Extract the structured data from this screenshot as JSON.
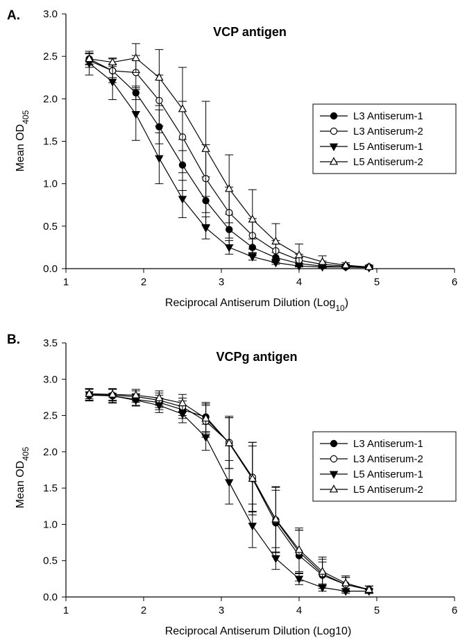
{
  "chart_data": [
    {
      "panel_label": "A.",
      "type": "line",
      "title": "VCP antigen",
      "xlabel": "Reciprocal Antiserum Dilution (Log",
      "xlabel_sub": "10",
      "xlabel_tail": ")",
      "ylabel": "Mean OD",
      "ylabel_sub": "405",
      "xlim": [
        1,
        6
      ],
      "ylim": [
        0,
        3
      ],
      "xticks": [
        "1",
        "2",
        "3",
        "4",
        "5",
        "6"
      ],
      "yticks": [
        "0.0",
        "0.5",
        "1.0",
        "1.5",
        "2.0",
        "2.5",
        "3.0"
      ],
      "legend_position": "right",
      "series": [
        {
          "name": "L3 Antiserum-1",
          "marker": "circle-filled",
          "x": [
            1.3,
            1.6,
            1.9,
            2.2,
            2.5,
            2.8,
            3.1,
            3.4,
            3.7,
            4.0,
            4.3,
            4.6,
            4.9
          ],
          "y": [
            2.47,
            2.33,
            2.07,
            1.67,
            1.22,
            0.8,
            0.46,
            0.25,
            0.13,
            0.06,
            0.03,
            0.02,
            0.02
          ],
          "err": [
            0.06,
            0.08,
            0.08,
            0.2,
            0.3,
            0.28,
            0.18,
            0.1,
            0.06,
            0.03,
            0.02,
            0.01,
            0.01
          ]
        },
        {
          "name": "L3 Antiserum-2",
          "marker": "circle-open",
          "x": [
            1.3,
            1.6,
            1.9,
            2.2,
            2.5,
            2.8,
            3.1,
            3.4,
            3.7,
            4.0,
            4.3,
            4.6,
            4.9
          ],
          "y": [
            2.45,
            2.33,
            2.31,
            1.98,
            1.55,
            1.06,
            0.66,
            0.39,
            0.21,
            0.1,
            0.05,
            0.03,
            0.02
          ],
          "err": [
            0.08,
            0.14,
            0.2,
            0.3,
            0.42,
            0.4,
            0.3,
            0.2,
            0.12,
            0.07,
            0.04,
            0.02,
            0.01
          ]
        },
        {
          "name": "L5 Antiserum-1",
          "marker": "triangle-down-filled",
          "x": [
            1.3,
            1.6,
            1.9,
            2.2,
            2.5,
            2.8,
            3.1,
            3.4,
            3.7,
            4.0,
            4.3,
            4.6,
            4.9
          ],
          "y": [
            2.42,
            2.2,
            1.82,
            1.3,
            0.82,
            0.48,
            0.25,
            0.14,
            0.07,
            0.03,
            0.02,
            0.02,
            0.01
          ],
          "err": [
            0.14,
            0.21,
            0.31,
            0.3,
            0.22,
            0.13,
            0.08,
            0.04,
            0.02,
            0.01,
            0.01,
            0.01,
            0.01
          ]
        },
        {
          "name": "L5 Antiserum-2",
          "marker": "triangle-up-open",
          "x": [
            1.3,
            1.6,
            1.9,
            2.2,
            2.5,
            2.8,
            3.1,
            3.4,
            3.7,
            4.0,
            4.3,
            4.6,
            4.9
          ],
          "y": [
            2.47,
            2.43,
            2.48,
            2.25,
            1.88,
            1.41,
            0.94,
            0.58,
            0.32,
            0.16,
            0.08,
            0.04,
            0.02
          ],
          "err": [
            0.07,
            0.05,
            0.17,
            0.33,
            0.49,
            0.56,
            0.4,
            0.35,
            0.21,
            0.13,
            0.07,
            0.03,
            0.02
          ]
        }
      ]
    },
    {
      "panel_label": "B.",
      "type": "line",
      "title": "VCPg antigen",
      "xlabel": "Reciprocal Antiserum Dilution (Log10)",
      "xlabel_sub": "",
      "xlabel_tail": "",
      "ylabel": "Mean OD",
      "ylabel_sub": "405",
      "xlim": [
        1,
        6
      ],
      "ylim": [
        0,
        3.5
      ],
      "xticks": [
        "1",
        "2",
        "3",
        "4",
        "5",
        "6"
      ],
      "yticks": [
        "0.0",
        "0.5",
        "1.0",
        "1.5",
        "2.0",
        "2.5",
        "3.0",
        "3.5"
      ],
      "legend_position": "right",
      "series": [
        {
          "name": "L3 Antiserum-1",
          "marker": "circle-filled",
          "x": [
            1.3,
            1.6,
            1.9,
            2.2,
            2.5,
            2.8,
            3.1,
            3.4,
            3.7,
            4.0,
            4.3,
            4.6,
            4.9
          ],
          "y": [
            2.78,
            2.77,
            2.72,
            2.68,
            2.58,
            2.48,
            2.12,
            1.63,
            1.02,
            0.57,
            0.3,
            0.17,
            0.1
          ],
          "err": [
            0.08,
            0.1,
            0.08,
            0.1,
            0.12,
            0.2,
            0.35,
            0.45,
            0.45,
            0.35,
            0.18,
            0.1,
            0.05
          ]
        },
        {
          "name": "L3 Antiserum-2",
          "marker": "circle-open",
          "x": [
            1.3,
            1.6,
            1.9,
            2.2,
            2.5,
            2.8,
            3.1,
            3.4,
            3.7,
            4.0,
            4.3,
            4.6,
            4.9
          ],
          "y": [
            2.79,
            2.78,
            2.76,
            2.71,
            2.62,
            2.42,
            2.13,
            1.65,
            1.06,
            0.62,
            0.32,
            0.17,
            0.1
          ],
          "err": [
            0.08,
            0.08,
            0.08,
            0.1,
            0.12,
            0.22,
            0.36,
            0.48,
            0.45,
            0.3,
            0.2,
            0.1,
            0.05
          ]
        },
        {
          "name": "L5 Antiserum-1",
          "marker": "triangle-down-filled",
          "x": [
            1.3,
            1.6,
            1.9,
            2.2,
            2.5,
            2.8,
            3.1,
            3.4,
            3.7,
            4.0,
            4.3,
            4.6,
            4.9
          ],
          "y": [
            2.79,
            2.77,
            2.71,
            2.64,
            2.52,
            2.2,
            1.58,
            0.98,
            0.53,
            0.25,
            0.13,
            0.08,
            0.08
          ],
          "err": [
            0.08,
            0.09,
            0.08,
            0.1,
            0.12,
            0.18,
            0.3,
            0.3,
            0.15,
            0.08,
            0.05,
            0.03,
            0.02
          ]
        },
        {
          "name": "L5 Antiserum-2",
          "marker": "triangle-up-open",
          "x": [
            1.3,
            1.6,
            1.9,
            2.2,
            2.5,
            2.8,
            3.1,
            3.4,
            3.7,
            4.0,
            4.3,
            4.6,
            4.9
          ],
          "y": [
            2.8,
            2.79,
            2.78,
            2.74,
            2.67,
            2.46,
            2.12,
            1.63,
            1.07,
            0.65,
            0.35,
            0.19,
            0.1
          ],
          "err": [
            0.07,
            0.08,
            0.08,
            0.1,
            0.12,
            0.2,
            0.35,
            0.5,
            0.45,
            0.3,
            0.2,
            0.1,
            0.05
          ]
        }
      ]
    }
  ]
}
